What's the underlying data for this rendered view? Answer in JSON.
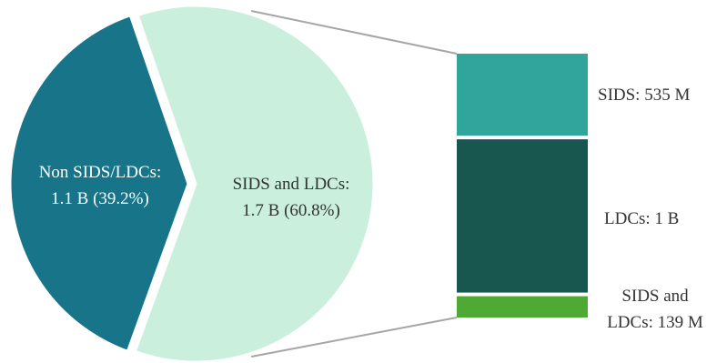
{
  "chart_data": {
    "type": "bar-of-pie",
    "pie": {
      "slices": [
        {
          "label_line1": "Non SIDS/LDCs:",
          "label_line2": "1.1 B (39.2%)",
          "value": 1.1,
          "percent": 39.2,
          "color": "#177489"
        },
        {
          "label_line1": "SIDS and LDCs:",
          "label_line2": "1.7 B (60.8%)",
          "value": 1.7,
          "percent": 60.8,
          "color": "#caf0dd"
        }
      ]
    },
    "bar": {
      "unit": "M",
      "segments": [
        {
          "label_lines": [
            "SIDS: 535 M"
          ],
          "value": 535,
          "color": "#31a59b"
        },
        {
          "label_lines": [
            "LDCs:  1 B"
          ],
          "value": 1000,
          "color": "#185650"
        },
        {
          "label_lines": [
            "SIDS and",
            "LDCs: 139 M"
          ],
          "value": 139,
          "color": "#4ea935"
        }
      ]
    },
    "connector_color": "#a6a6a6"
  }
}
